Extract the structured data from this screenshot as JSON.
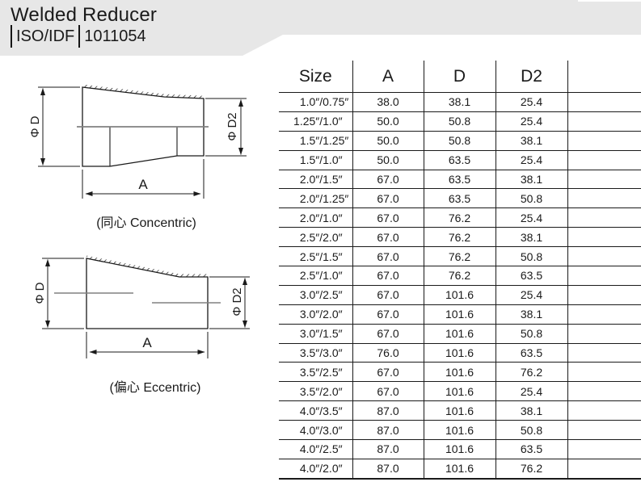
{
  "header": {
    "title": "Welded Reducer",
    "standard": "ISO/IDF",
    "code": "1011054"
  },
  "colors": {
    "header_band": "#e7e7e7",
    "line": "#1a1a1a",
    "centerline": "#808080"
  },
  "drawings": {
    "concentric": {
      "caption": "(同心 Concentric)",
      "dim_d": "Φ D",
      "dim_d2": "Φ D2",
      "dim_a": "A"
    },
    "eccentric": {
      "caption": "(偏心 Eccentric)",
      "dim_d": "Φ D",
      "dim_d2": "Φ D2",
      "dim_a": "A"
    }
  },
  "table": {
    "columns": [
      "Size",
      "A",
      "D",
      "D2",
      ""
    ],
    "rows": [
      {
        "size_major": "1.0″",
        "size_minor": "/0.75″",
        "a": "38.0",
        "d": "38.1",
        "d2": "25.4"
      },
      {
        "size_major": "1.25″",
        "size_minor": "/1.0″",
        "a": "50.0",
        "d": "50.8",
        "d2": "25.4"
      },
      {
        "size_major": "1.5″",
        "size_minor": "/1.25″",
        "a": "50.0",
        "d": "50.8",
        "d2": "38.1"
      },
      {
        "size_major": "1.5″",
        "size_minor": "/1.0″",
        "a": "50.0",
        "d": "63.5",
        "d2": "25.4"
      },
      {
        "size_major": "2.0″",
        "size_minor": "/1.5″",
        "a": "67.0",
        "d": "63.5",
        "d2": "38.1"
      },
      {
        "size_major": "2.0″",
        "size_minor": "/1.25″",
        "a": "67.0",
        "d": "63.5",
        "d2": "50.8"
      },
      {
        "size_major": "2.0″",
        "size_minor": "/1.0″",
        "a": "67.0",
        "d": "76.2",
        "d2": "25.4"
      },
      {
        "size_major": "2.5″",
        "size_minor": "/2.0″",
        "a": "67.0",
        "d": "76.2",
        "d2": "38.1"
      },
      {
        "size_major": "2.5″",
        "size_minor": "/1.5″",
        "a": "67.0",
        "d": "76.2",
        "d2": "50.8"
      },
      {
        "size_major": "2.5″",
        "size_minor": "/1.0″",
        "a": "67.0",
        "d": "76.2",
        "d2": "63.5"
      },
      {
        "size_major": "3.0″",
        "size_minor": "/2.5″",
        "a": "67.0",
        "d": "101.6",
        "d2": "25.4"
      },
      {
        "size_major": "3.0″",
        "size_minor": "/2.0″",
        "a": "67.0",
        "d": "101.6",
        "d2": "38.1"
      },
      {
        "size_major": "3.0″",
        "size_minor": "/1.5″",
        "a": "67.0",
        "d": "101.6",
        "d2": "50.8"
      },
      {
        "size_major": "3.5″",
        "size_minor": "/3.0″",
        "a": "76.0",
        "d": "101.6",
        "d2": "63.5"
      },
      {
        "size_major": "3.5″",
        "size_minor": "/2.5″",
        "a": "67.0",
        "d": "101.6",
        "d2": "76.2"
      },
      {
        "size_major": "3.5″",
        "size_minor": "/2.0″",
        "a": "67.0",
        "d": "101.6",
        "d2": "25.4"
      },
      {
        "size_major": "4.0″",
        "size_minor": "/3.5″",
        "a": "87.0",
        "d": "101.6",
        "d2": "38.1"
      },
      {
        "size_major": "4.0″",
        "size_minor": "/3.0″",
        "a": "87.0",
        "d": "101.6",
        "d2": "50.8"
      },
      {
        "size_major": "4.0″",
        "size_minor": "/2.5″",
        "a": "87.0",
        "d": "101.6",
        "d2": "63.5"
      },
      {
        "size_major": "4.0″",
        "size_minor": "/2.0″",
        "a": "87.0",
        "d": "101.6",
        "d2": "76.2"
      }
    ]
  }
}
